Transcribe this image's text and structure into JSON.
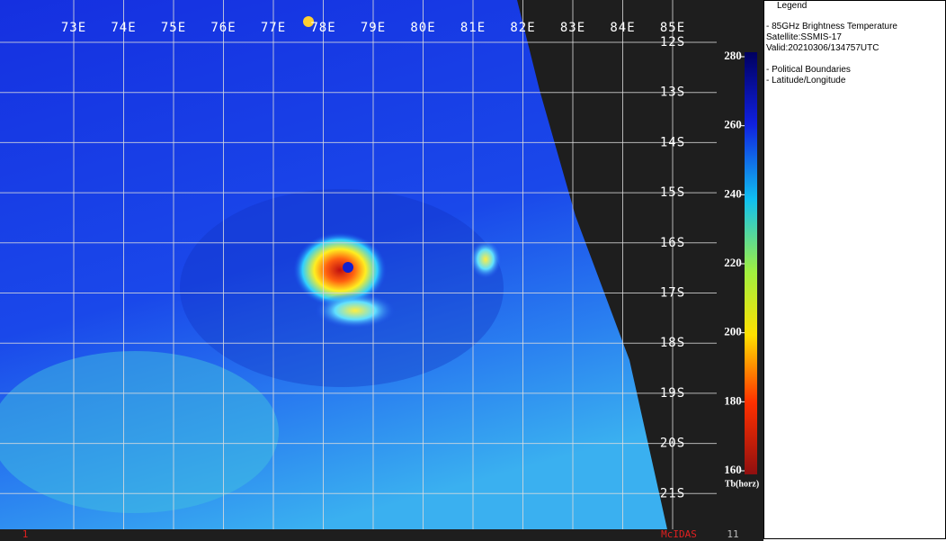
{
  "map": {
    "longitude_labels": [
      "73E",
      "74E",
      "75E",
      "76E",
      "77E",
      "78E",
      "79E",
      "80E",
      "81E",
      "82E",
      "83E",
      "84E",
      "85E"
    ],
    "latitude_labels": [
      "12S",
      "13S",
      "14S",
      "15S",
      "16S",
      "17S",
      "18S",
      "19S",
      "20S",
      "21S"
    ]
  },
  "colorbar": {
    "label": "Tb(horz)",
    "range": [
      160,
      280
    ],
    "ticks": [
      280,
      260,
      240,
      220,
      200,
      180,
      160
    ]
  },
  "status_bar": {
    "frame": "1",
    "software": "McIDAS",
    "count": "11"
  },
  "legend": {
    "title": "Legend",
    "product": "-  85GHz Brightness Temperature",
    "satellite": "Satellite:SSMIS-17",
    "valid": "Valid:20210306/134757UTC",
    "layers": [
      "-  Political Boundaries",
      "-  Latitude/Longitude"
    ]
  }
}
